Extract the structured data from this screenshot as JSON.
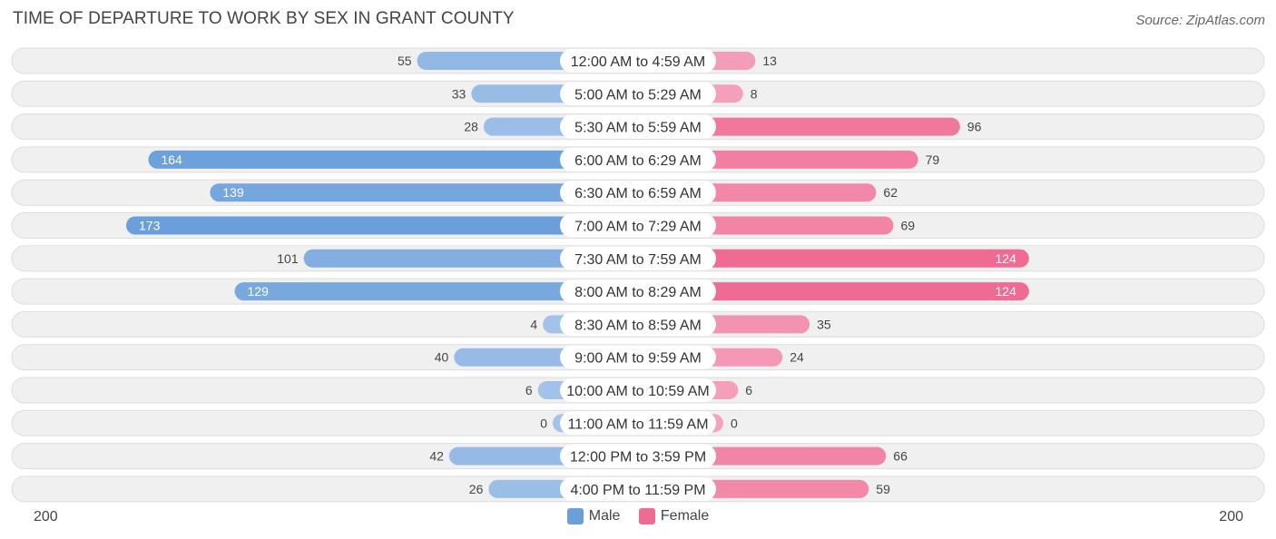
{
  "title": "TIME OF DEPARTURE TO WORK BY SEX IN GRANT COUNTY",
  "source": "Source: ZipAtlas.com",
  "colors": {
    "male_dark": "#6a9fdb",
    "male_light": "#a4c3e9",
    "female_dark": "#f06b94",
    "female_light": "#f5a3bd",
    "row_bg": "#f0f0f0",
    "row_border": "#dddddd"
  },
  "chart_data": {
    "type": "bar",
    "orientation": "horizontal-diverging",
    "xlim": [
      -200,
      200
    ],
    "axis_min_label": "200",
    "axis_max_label": "200",
    "categories": [
      "12:00 AM to 4:59 AM",
      "5:00 AM to 5:29 AM",
      "5:30 AM to 5:59 AM",
      "6:00 AM to 6:29 AM",
      "6:30 AM to 6:59 AM",
      "7:00 AM to 7:29 AM",
      "7:30 AM to 7:59 AM",
      "8:00 AM to 8:29 AM",
      "8:30 AM to 8:59 AM",
      "9:00 AM to 9:59 AM",
      "10:00 AM to 10:59 AM",
      "11:00 AM to 11:59 AM",
      "12:00 PM to 3:59 PM",
      "4:00 PM to 11:59 PM"
    ],
    "series": [
      {
        "name": "Male",
        "values": [
          55,
          33,
          28,
          164,
          139,
          173,
          101,
          129,
          4,
          40,
          6,
          0,
          42,
          26
        ]
      },
      {
        "name": "Female",
        "values": [
          13,
          8,
          96,
          79,
          62,
          69,
          124,
          124,
          35,
          24,
          6,
          0,
          66,
          59
        ]
      }
    ],
    "legend": [
      "Male",
      "Female"
    ]
  }
}
